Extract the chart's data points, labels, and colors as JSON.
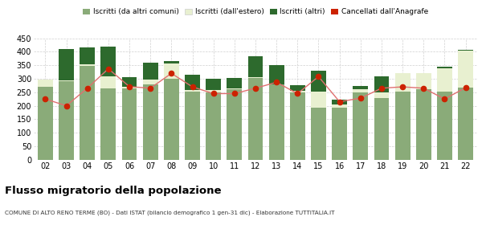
{
  "years": [
    "02",
    "03",
    "04",
    "05",
    "06",
    "07",
    "08",
    "09",
    "10",
    "11",
    "12",
    "13",
    "14",
    "15",
    "16",
    "17",
    "18",
    "19",
    "20",
    "21",
    "22"
  ],
  "iscritti_altri_comuni": [
    270,
    290,
    348,
    263,
    265,
    280,
    300,
    252,
    250,
    260,
    302,
    278,
    250,
    192,
    192,
    248,
    230,
    252,
    262,
    252,
    268
  ],
  "iscritti_estero": [
    28,
    5,
    5,
    45,
    5,
    18,
    58,
    5,
    8,
    5,
    5,
    0,
    5,
    60,
    12,
    12,
    18,
    68,
    60,
    88,
    135
  ],
  "iscritti_altri": [
    0,
    115,
    62,
    110,
    35,
    62,
    8,
    58,
    42,
    38,
    75,
    72,
    20,
    78,
    18,
    12,
    62,
    0,
    0,
    5,
    5
  ],
  "cancellati": [
    225,
    200,
    265,
    337,
    271,
    265,
    320,
    270,
    245,
    245,
    265,
    287,
    245,
    308,
    215,
    228,
    265,
    270,
    265,
    225,
    267
  ],
  "color_altri_comuni": "#8aab79",
  "color_estero": "#e8f0d0",
  "color_altri": "#2d6a2d",
  "color_cancellati": "#cc2200",
  "color_line": "#e07070",
  "ylim": [
    0,
    450
  ],
  "yticks": [
    0,
    50,
    100,
    150,
    200,
    250,
    300,
    350,
    400,
    450
  ],
  "title": "Flusso migratorio della popolazione",
  "subtitle": "COMUNE DI ALTO RENO TERME (BO) - Dati ISTAT (bilancio demografico 1 gen-31 dic) - Elaborazione TUTTITALIA.IT",
  "legend_labels": [
    "Iscritti (da altri comuni)",
    "Iscritti (dall'estero)",
    "Iscritti (altri)",
    "Cancellati dall'Anagrafe"
  ],
  "background_color": "#ffffff",
  "grid_color": "#cccccc"
}
